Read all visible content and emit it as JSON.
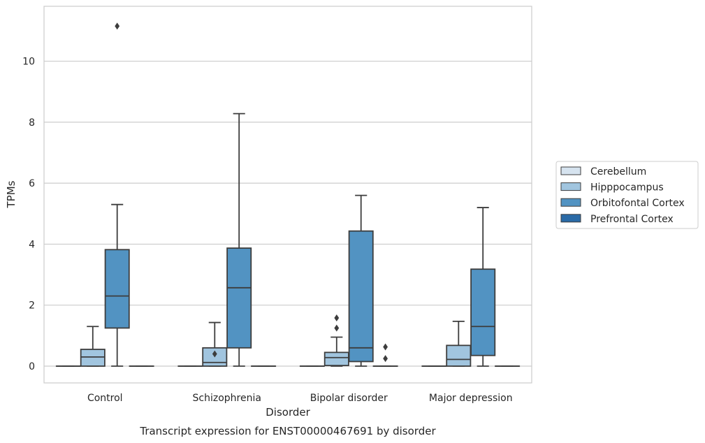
{
  "chart_data": {
    "type": "boxplot",
    "title": "",
    "caption": "Transcript expression for ENST00000467691 by disorder",
    "xlabel": "Disorder",
    "ylabel": "TPMs",
    "ylim": [
      -0.55,
      11.8
    ],
    "yticks": [
      0,
      2,
      4,
      6,
      8,
      10
    ],
    "grid": "horizontal",
    "legend_position": "right",
    "categories": [
      "Control",
      "Schizophrenia",
      "Bipolar disorder",
      "Major depression"
    ],
    "series": [
      {
        "name": "Cerebellum",
        "color": "#d6e3ef",
        "boxes": [
          {
            "whisker_low": 0,
            "q1": 0,
            "median": 0,
            "q3": 0,
            "whisker_high": 0,
            "outliers": []
          },
          {
            "whisker_low": 0,
            "q1": 0,
            "median": 0,
            "q3": 0,
            "whisker_high": 0,
            "outliers": []
          },
          {
            "whisker_low": 0,
            "q1": 0,
            "median": 0,
            "q3": 0,
            "whisker_high": 0,
            "outliers": []
          },
          {
            "whisker_low": 0,
            "q1": 0,
            "median": 0,
            "q3": 0,
            "whisker_high": 0,
            "outliers": []
          }
        ]
      },
      {
        "name": "Hipppocampus",
        "color": "#a1c5df",
        "boxes": [
          {
            "whisker_low": 0,
            "q1": 0,
            "median": 0.3,
            "q3": 0.55,
            "whisker_high": 1.3,
            "outliers": []
          },
          {
            "whisker_low": 0,
            "q1": 0,
            "median": 0.12,
            "q3": 0.6,
            "whisker_high": 1.43,
            "outliers": [
              0.4
            ]
          },
          {
            "whisker_low": 0,
            "q1": 0.02,
            "median": 0.28,
            "q3": 0.45,
            "whisker_high": 0.95,
            "outliers": [
              1.25,
              1.58
            ]
          },
          {
            "whisker_low": 0,
            "q1": 0,
            "median": 0.22,
            "q3": 0.68,
            "whisker_high": 1.47,
            "outliers": []
          }
        ]
      },
      {
        "name": "Orbitofontal Cortex",
        "color": "#5293c2",
        "boxes": [
          {
            "whisker_low": 0,
            "q1": 1.25,
            "median": 2.3,
            "q3": 3.82,
            "whisker_high": 5.3,
            "outliers": [
              11.15
            ]
          },
          {
            "whisker_low": 0,
            "q1": 0.6,
            "median": 2.57,
            "q3": 3.87,
            "whisker_high": 8.28,
            "outliers": []
          },
          {
            "whisker_low": 0,
            "q1": 0.15,
            "median": 0.6,
            "q3": 4.43,
            "whisker_high": 5.6,
            "outliers": []
          },
          {
            "whisker_low": 0,
            "q1": 0.35,
            "median": 1.3,
            "q3": 3.18,
            "whisker_high": 5.2,
            "outliers": []
          }
        ]
      },
      {
        "name": "Prefrontal Cortex",
        "color": "#2a6aa6",
        "boxes": [
          {
            "whisker_low": 0,
            "q1": 0,
            "median": 0,
            "q3": 0,
            "whisker_high": 0,
            "outliers": []
          },
          {
            "whisker_low": 0,
            "q1": 0,
            "median": 0,
            "q3": 0,
            "whisker_high": 0,
            "outliers": []
          },
          {
            "whisker_low": 0,
            "q1": 0,
            "median": 0,
            "q3": 0,
            "whisker_high": 0,
            "outliers": [
              0.25,
              0.63
            ]
          },
          {
            "whisker_low": 0,
            "q1": 0,
            "median": 0,
            "q3": 0,
            "whisker_high": 0,
            "outliers": []
          }
        ]
      }
    ]
  }
}
